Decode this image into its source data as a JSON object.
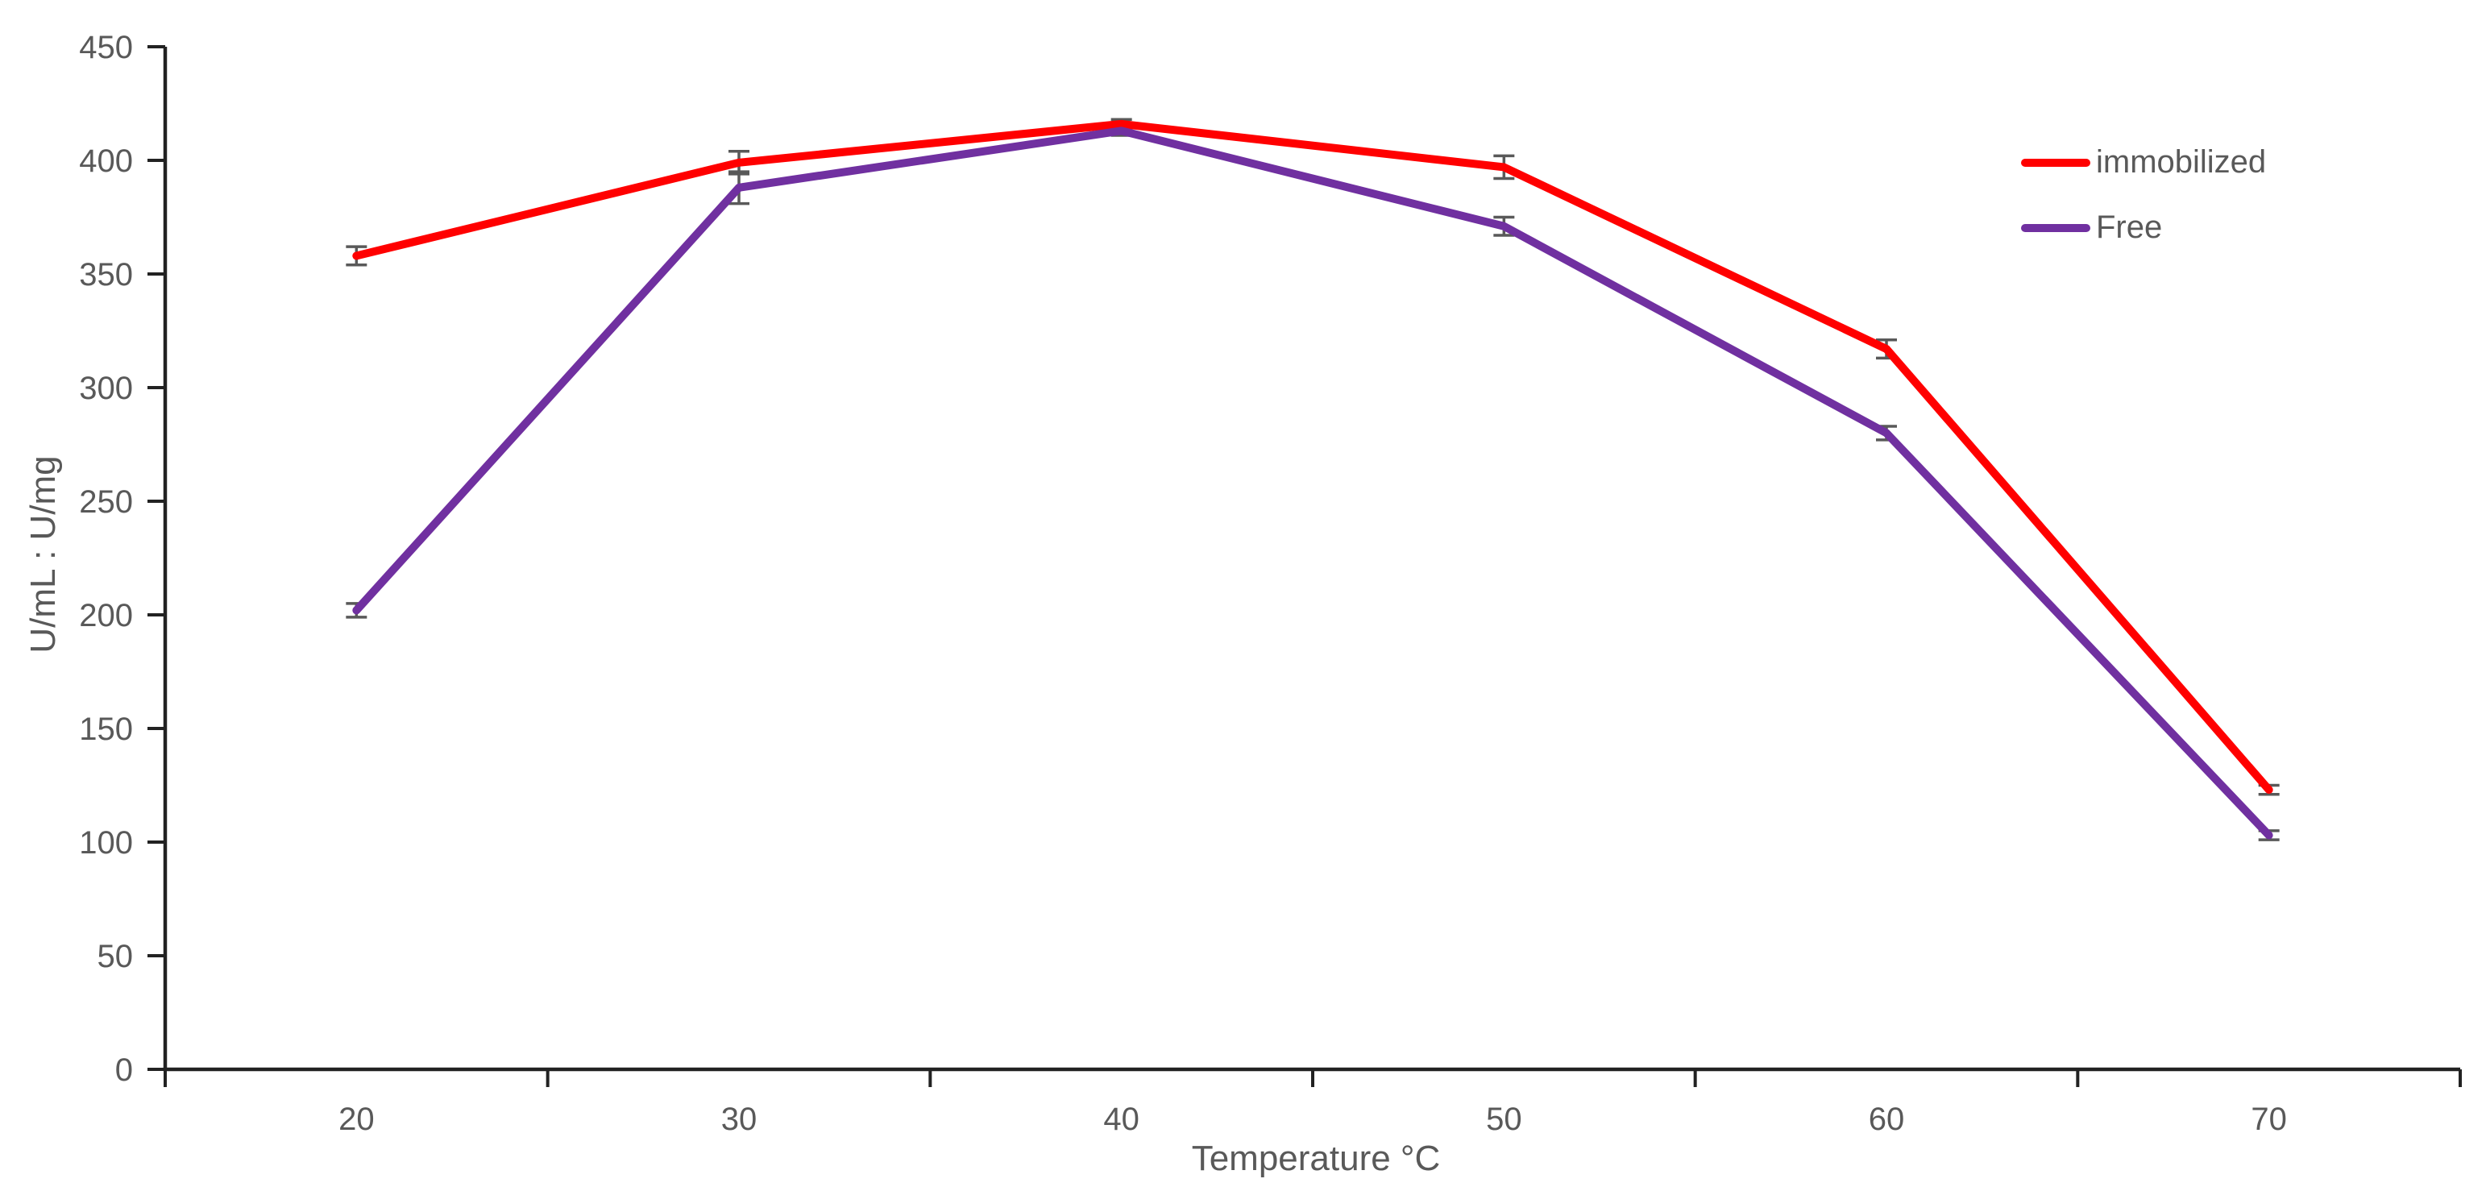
{
  "chart_data": {
    "type": "line",
    "title": "",
    "xlabel": "Temperature °C",
    "ylabel": "U/mL : U/mg",
    "categories": [
      "20",
      "30",
      "40",
      "50",
      "60",
      "70"
    ],
    "series": [
      {
        "name": "immobilized",
        "color": "#FF0000",
        "values": [
          358,
          399,
          416,
          397,
          317,
          123
        ],
        "errors": [
          4,
          5,
          2,
          5,
          4,
          2
        ]
      },
      {
        "name": "Free",
        "color": "#7030A0",
        "values": [
          202,
          388,
          413,
          371,
          280,
          103
        ],
        "errors": [
          3,
          7,
          2,
          4,
          3,
          2
        ]
      }
    ],
    "ylim": [
      0,
      450
    ],
    "yticks": [
      0,
      50,
      100,
      150,
      200,
      250,
      300,
      350,
      400,
      450
    ],
    "grid": false,
    "legend_position": "right-top",
    "error_bar_color": "#595959",
    "text_color": "#595959",
    "axis_color": "#222222"
  }
}
